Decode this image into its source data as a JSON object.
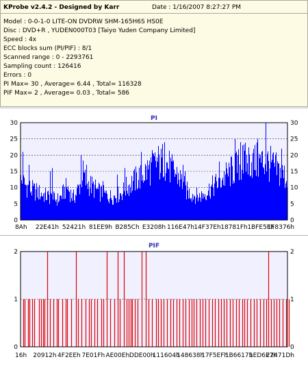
{
  "info": {
    "app_title": "KProbe v2.4.2 - Designed by Karr",
    "date": "Date : 1/16/2007 8:27:27 PM",
    "lines": [
      "Model : 0-0-1-0 LITE-ON DVDRW SHM-165H6S HS0E",
      "Disc : DVD+R , YUDEN000T03 [Taiyo Yuden Company Limited]",
      "Speed : 4x",
      "ECC blocks sum (PI/PIF) : 8/1",
      "Scanned range : 0 - 2293761",
      "Sampling count : 126416",
      "Errors : 0",
      "PI Max= 30 , Average= 6.44 , Total= 116328",
      "PIF Max= 2 , Average= 0.03 , Total= 586"
    ]
  },
  "colors": {
    "pi": "#0000ff",
    "pif": "#e00000",
    "plot_bg": "#f0f0ff",
    "grid": "#333333"
  },
  "chart_data": [
    {
      "type": "bar",
      "title": "PI",
      "ylim": [
        0,
        30
      ],
      "yticks": [
        0,
        5,
        10,
        15,
        20,
        25,
        30
      ],
      "xtick_labels": [
        "8Ah",
        "22E41h",
        "52421h",
        "81EE9h",
        "B285Ch",
        "E3208h",
        "116E47h",
        "14F37Eh",
        "18781Fh",
        "1BFE5Fh",
        "1F8376h"
      ],
      "grid": true,
      "profile": [
        [
          0,
          14
        ],
        [
          5,
          13
        ],
        [
          10,
          12
        ],
        [
          15,
          11
        ],
        [
          20,
          10.5
        ],
        [
          25,
          10
        ],
        [
          30,
          9.5
        ],
        [
          35,
          9
        ],
        [
          40,
          8.5
        ],
        [
          45,
          8
        ],
        [
          50,
          7.5
        ],
        [
          55,
          7.5
        ],
        [
          60,
          9
        ],
        [
          65,
          11
        ],
        [
          68,
          12
        ],
        [
          72,
          10
        ],
        [
          76,
          8
        ],
        [
          80,
          9
        ],
        [
          85,
          12
        ],
        [
          88,
          14
        ],
        [
          90,
          17
        ],
        [
          92,
          16
        ],
        [
          95,
          14
        ],
        [
          100,
          13
        ],
        [
          105,
          12
        ],
        [
          110,
          11
        ],
        [
          115,
          10
        ],
        [
          120,
          9.5
        ],
        [
          125,
          9
        ],
        [
          130,
          8.5
        ],
        [
          135,
          8.5
        ],
        [
          140,
          9
        ],
        [
          145,
          9.5
        ],
        [
          150,
          10.5
        ],
        [
          155,
          12
        ],
        [
          160,
          13
        ],
        [
          165,
          14
        ],
        [
          170,
          15
        ],
        [
          175,
          16
        ],
        [
          180,
          17
        ],
        [
          185,
          18
        ],
        [
          190,
          19
        ],
        [
          195,
          20
        ],
        [
          200,
          21
        ],
        [
          205,
          20
        ],
        [
          208,
          22
        ],
        [
          210,
          21
        ],
        [
          215,
          20
        ],
        [
          220,
          18
        ],
        [
          225,
          17
        ],
        [
          230,
          16
        ],
        [
          235,
          14
        ],
        [
          238,
          13
        ],
        [
          240,
          11
        ],
        [
          245,
          10
        ],
        [
          250,
          9.5
        ],
        [
          255,
          9
        ],
        [
          260,
          8.5
        ],
        [
          265,
          9
        ],
        [
          270,
          10
        ],
        [
          275,
          11
        ],
        [
          280,
          12
        ],
        [
          285,
          13
        ],
        [
          290,
          14
        ],
        [
          295,
          15
        ],
        [
          300,
          16
        ],
        [
          305,
          17
        ],
        [
          310,
          18
        ],
        [
          315,
          19
        ],
        [
          320,
          20
        ],
        [
          325,
          21
        ],
        [
          330,
          21
        ],
        [
          335,
          22
        ],
        [
          340,
          21
        ],
        [
          345,
          21
        ],
        [
          350,
          21
        ],
        [
          355,
          21
        ],
        [
          360,
          21
        ],
        [
          365,
          20
        ],
        [
          370,
          19
        ],
        [
          375,
          18
        ],
        [
          380,
          17
        ],
        [
          385,
          16
        ],
        [
          388,
          15
        ],
        [
          391,
          14
        ],
        [
          393,
          12
        ]
      ],
      "spikes": [
        [
          3,
          21
        ],
        [
          12,
          17
        ],
        [
          43,
          15
        ],
        [
          46,
          16
        ],
        [
          88,
          20
        ],
        [
          96,
          17
        ],
        [
          120,
          12
        ],
        [
          141,
          14
        ],
        [
          152,
          16
        ],
        [
          176,
          21
        ],
        [
          205,
          22
        ],
        [
          210,
          24
        ],
        [
          237,
          17
        ],
        [
          240,
          15
        ],
        [
          290,
          18
        ],
        [
          313,
          25
        ],
        [
          321,
          24
        ],
        [
          324,
          23
        ],
        [
          346,
          25
        ],
        [
          358,
          30
        ],
        [
          381,
          22
        ],
        [
          393,
          19
        ]
      ]
    },
    {
      "type": "bar",
      "title": "PIF",
      "ylim": [
        0,
        2
      ],
      "yticks": [
        0,
        1,
        2
      ],
      "xtick_labels": [
        "16h",
        "20912h",
        "4F2EEh",
        "7E01Fh",
        "AE00Eh",
        "DDE00h",
        "111604h",
        "148638h",
        "17F5EFh",
        "1B6617h",
        "1ED6E7h",
        "22471Dh"
      ],
      "grid": true,
      "spikes": [
        [
          4,
          1
        ],
        [
          6,
          1
        ],
        [
          11,
          1
        ],
        [
          13,
          1
        ],
        [
          17,
          1
        ],
        [
          20,
          1
        ],
        [
          27,
          1
        ],
        [
          30,
          1
        ],
        [
          33,
          1
        ],
        [
          35,
          1
        ],
        [
          39,
          2
        ],
        [
          43,
          1
        ],
        [
          48,
          1
        ],
        [
          53,
          1
        ],
        [
          55,
          1
        ],
        [
          61,
          1
        ],
        [
          66,
          1
        ],
        [
          68,
          1
        ],
        [
          74,
          1
        ],
        [
          81,
          2
        ],
        [
          84,
          1
        ],
        [
          89,
          1
        ],
        [
          95,
          1
        ],
        [
          100,
          1
        ],
        [
          103,
          1
        ],
        [
          108,
          1
        ],
        [
          112,
          1
        ],
        [
          118,
          1
        ],
        [
          121,
          1
        ],
        [
          126,
          2
        ],
        [
          131,
          1
        ],
        [
          137,
          1
        ],
        [
          142,
          2
        ],
        [
          145,
          1
        ],
        [
          151,
          2
        ],
        [
          155,
          1
        ],
        [
          158,
          1
        ],
        [
          161,
          1
        ],
        [
          163,
          1
        ],
        [
          167,
          1
        ],
        [
          171,
          1
        ],
        [
          177,
          2
        ],
        [
          183,
          2
        ],
        [
          187,
          1
        ],
        [
          192,
          1
        ],
        [
          198,
          1
        ],
        [
          201,
          1
        ],
        [
          205,
          1
        ],
        [
          209,
          1
        ],
        [
          214,
          1
        ],
        [
          219,
          1
        ],
        [
          223,
          1
        ],
        [
          228,
          1
        ],
        [
          232,
          1
        ],
        [
          237,
          1
        ],
        [
          241,
          1
        ],
        [
          246,
          1
        ],
        [
          250,
          1
        ],
        [
          253,
          1
        ],
        [
          257,
          1
        ],
        [
          262,
          1
        ],
        [
          266,
          1
        ],
        [
          270,
          1
        ],
        [
          275,
          1
        ],
        [
          280,
          1
        ],
        [
          284,
          1
        ],
        [
          289,
          1
        ],
        [
          293,
          1
        ],
        [
          297,
          1
        ],
        [
          301,
          1
        ],
        [
          306,
          1
        ],
        [
          310,
          1
        ],
        [
          315,
          1
        ],
        [
          319,
          1
        ],
        [
          324,
          1
        ],
        [
          327,
          1
        ],
        [
          331,
          1
        ],
        [
          336,
          1
        ],
        [
          341,
          1
        ],
        [
          345,
          1
        ],
        [
          350,
          1
        ],
        [
          355,
          1
        ],
        [
          359,
          1
        ],
        [
          362,
          2
        ],
        [
          366,
          1
        ],
        [
          370,
          1
        ],
        [
          374,
          1
        ],
        [
          378,
          1
        ],
        [
          383,
          1
        ],
        [
          388,
          1
        ],
        [
          392,
          1
        ]
      ]
    }
  ]
}
